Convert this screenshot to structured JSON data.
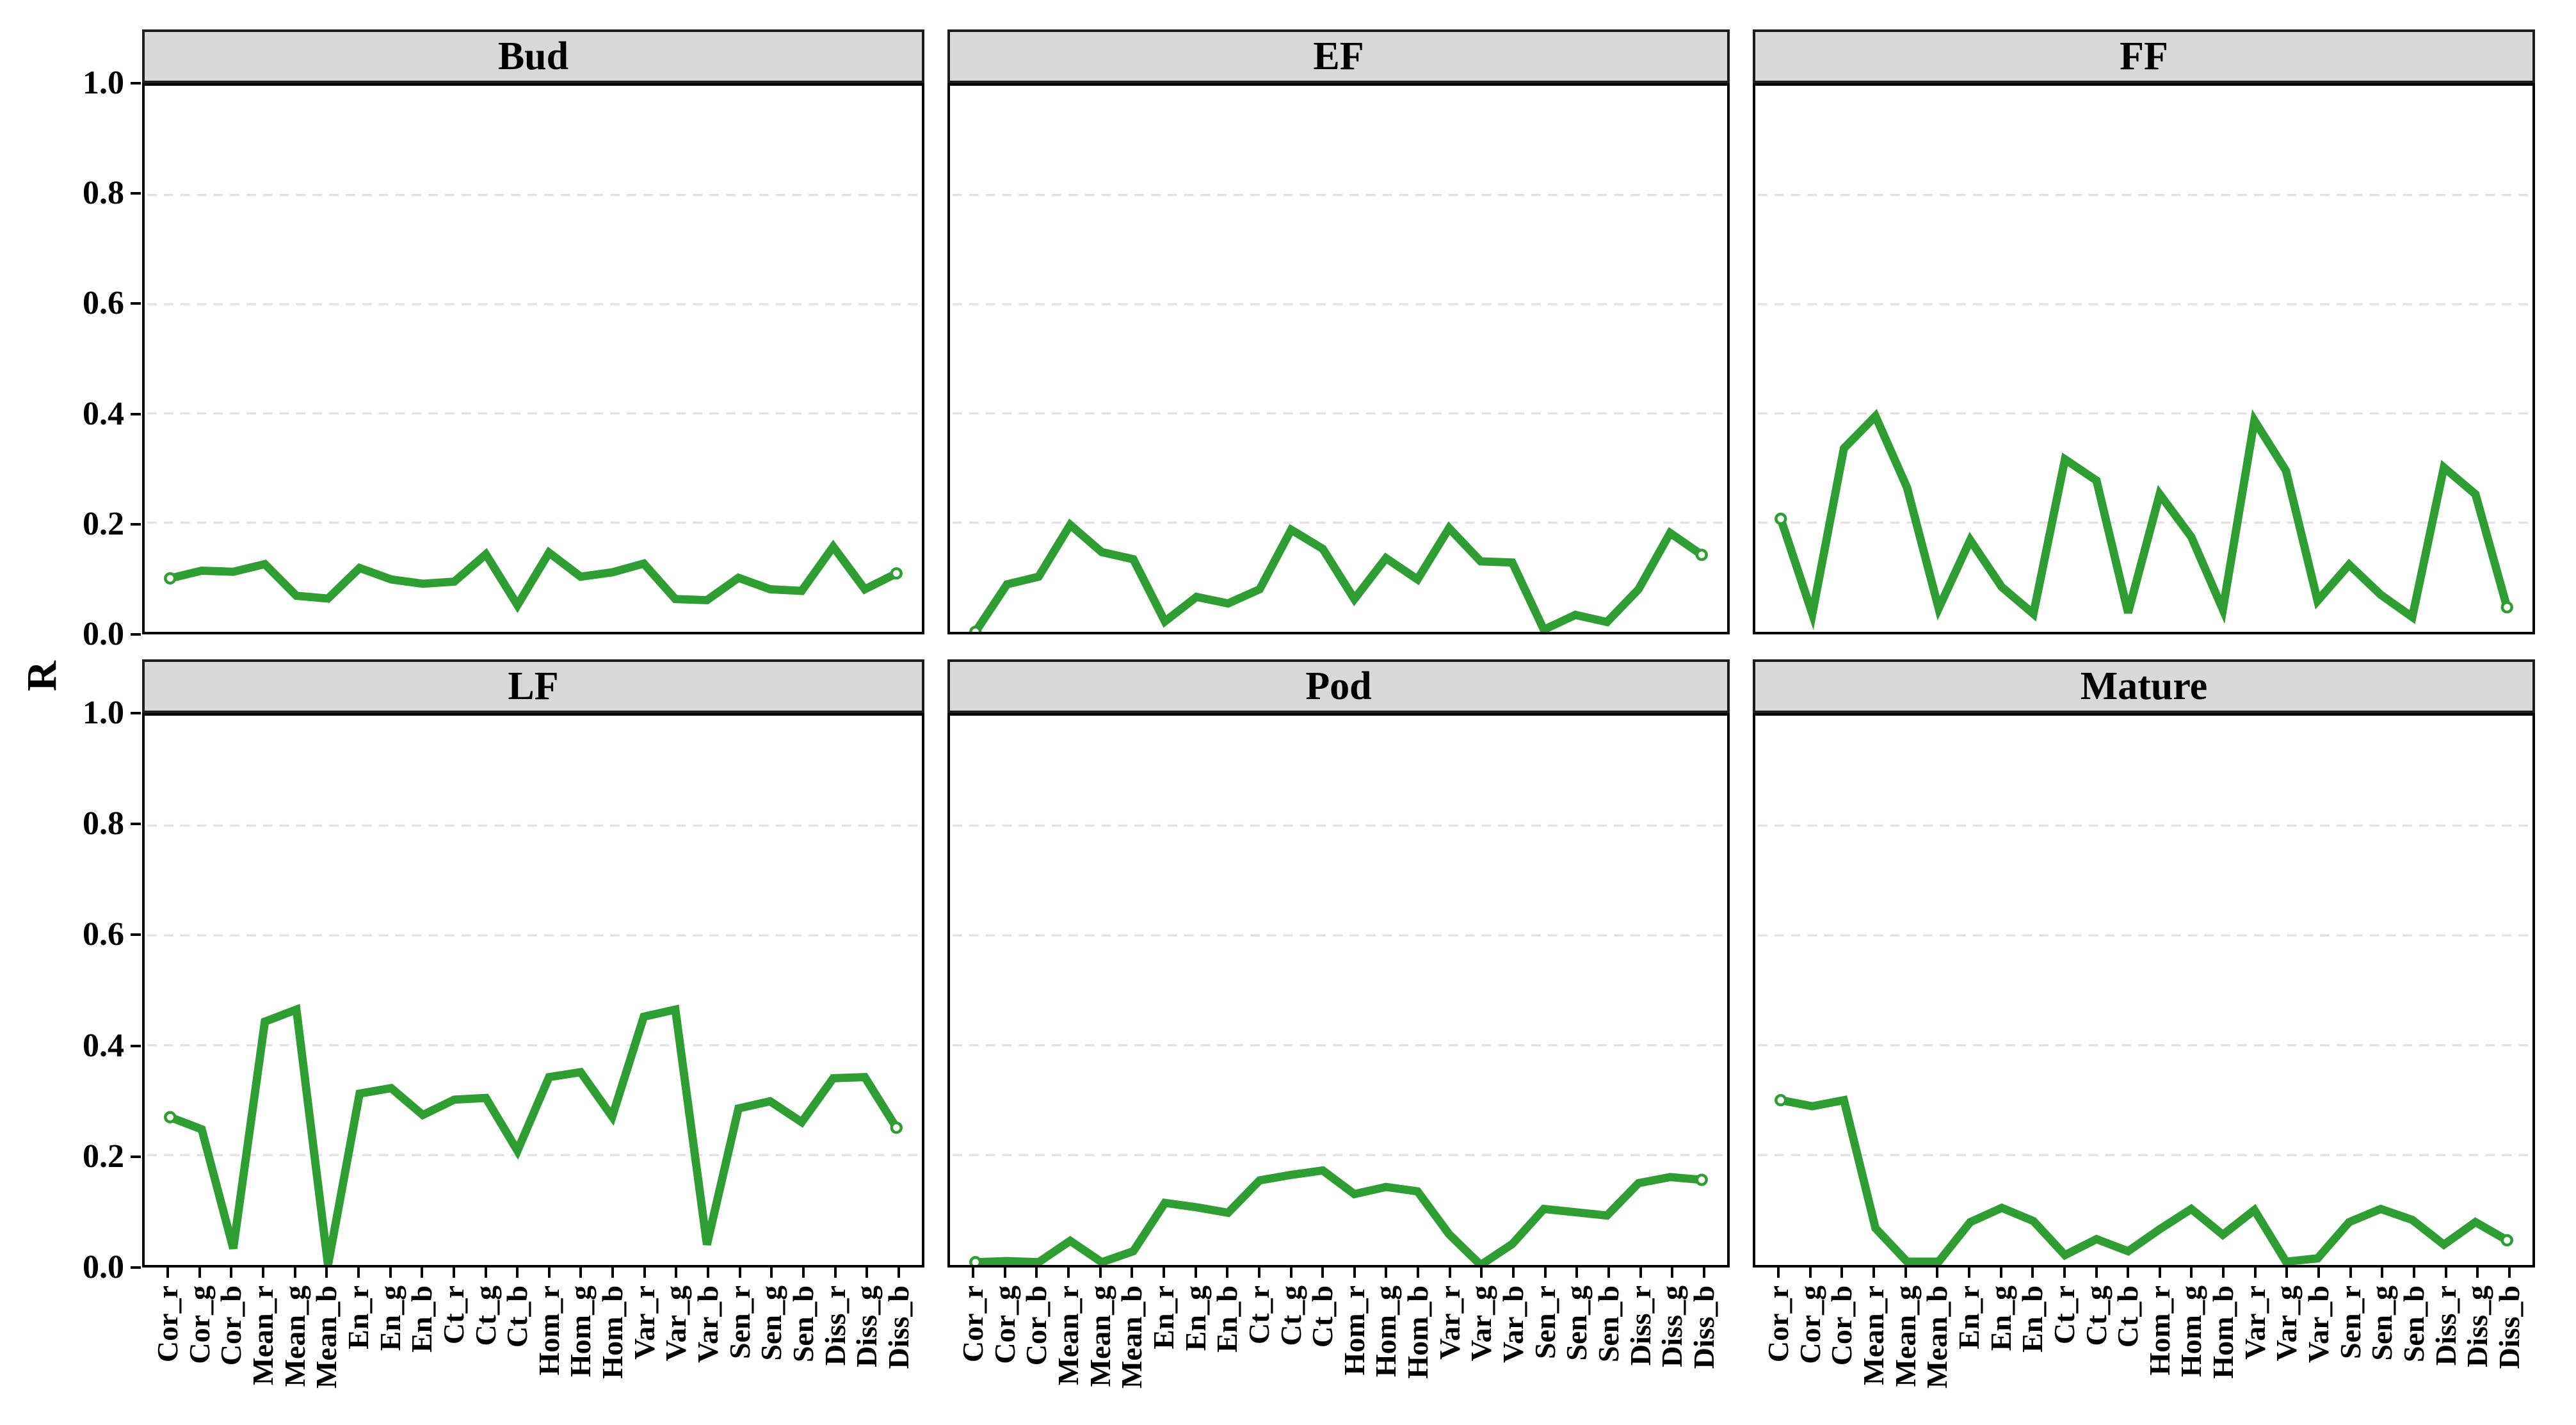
{
  "chart_data": {
    "type": "line",
    "title": "",
    "xlabel": "",
    "ylabel": "R",
    "ylim": [
      0.0,
      1.0
    ],
    "ytick_labels": [
      "1.0",
      "0.8",
      "0.6",
      "0.4",
      "0.2",
      "0.0"
    ],
    "ytick_values": [
      1.0,
      0.8,
      0.6,
      0.4,
      0.2,
      0.0
    ],
    "grid": "horizontal dashed lines at 0.2, 0.4, 0.6, 0.8",
    "legend_position": "none",
    "facet_layout": "2 rows x 3 columns, shared axes, grey strip header above each panel",
    "marker": "open circles on first and last data points of each line",
    "line_color": "#2e9d32",
    "strip_fill": "#d8d8d8",
    "grid_color": "#e2e2e2",
    "categories": [
      "Cor_r",
      "Cor_g",
      "Cor_b",
      "Mean_r",
      "Mean_g",
      "Mean_b",
      "En_r",
      "En_g",
      "En_b",
      "Ct_r",
      "Ct_g",
      "Ct_b",
      "Hom_r",
      "Hom_g",
      "Hom_b",
      "Var_r",
      "Var_g",
      "Var_b",
      "Sen_r",
      "Sen_g",
      "Sen_b",
      "Diss_r",
      "Diss_g",
      "Diss_b"
    ],
    "facets": [
      {
        "name": "Bud",
        "values": [
          0.098,
          0.112,
          0.11,
          0.124,
          0.066,
          0.061,
          0.117,
          0.096,
          0.088,
          0.092,
          0.142,
          0.049,
          0.145,
          0.101,
          0.109,
          0.125,
          0.06,
          0.058,
          0.099,
          0.078,
          0.075,
          0.156,
          0.078,
          0.107
        ]
      },
      {
        "name": "EF",
        "values": [
          0.0,
          0.087,
          0.101,
          0.196,
          0.146,
          0.133,
          0.019,
          0.064,
          0.052,
          0.078,
          0.187,
          0.152,
          0.06,
          0.135,
          0.096,
          0.19,
          0.129,
          0.127,
          0.004,
          0.031,
          0.018,
          0.078,
          0.181,
          0.141
        ]
      },
      {
        "name": "FF",
        "values": [
          0.207,
          0.033,
          0.336,
          0.395,
          0.264,
          0.043,
          0.168,
          0.082,
          0.033,
          0.316,
          0.277,
          0.035,
          0.252,
          0.174,
          0.041,
          0.387,
          0.295,
          0.057,
          0.123,
          0.068,
          0.027,
          0.301,
          0.252,
          0.045
        ]
      },
      {
        "name": "LF",
        "values": [
          0.269,
          0.247,
          0.03,
          0.443,
          0.465,
          0.0,
          0.312,
          0.322,
          0.273,
          0.301,
          0.304,
          0.208,
          0.342,
          0.351,
          0.27,
          0.452,
          0.465,
          0.037,
          0.285,
          0.298,
          0.26,
          0.34,
          0.342,
          0.25
        ]
      },
      {
        "name": "Pod",
        "values": [
          0.005,
          0.007,
          0.005,
          0.044,
          0.005,
          0.025,
          0.113,
          0.105,
          0.095,
          0.154,
          0.164,
          0.172,
          0.129,
          0.142,
          0.134,
          0.056,
          0.0,
          0.038,
          0.102,
          0.096,
          0.09,
          0.149,
          0.16,
          0.155
        ]
      },
      {
        "name": "Mature",
        "values": [
          0.3,
          0.289,
          0.3,
          0.067,
          0.006,
          0.006,
          0.078,
          0.104,
          0.08,
          0.018,
          0.047,
          0.025,
          0.065,
          0.102,
          0.055,
          0.1,
          0.006,
          0.012,
          0.078,
          0.102,
          0.082,
          0.037,
          0.078,
          0.045
        ]
      }
    ]
  }
}
